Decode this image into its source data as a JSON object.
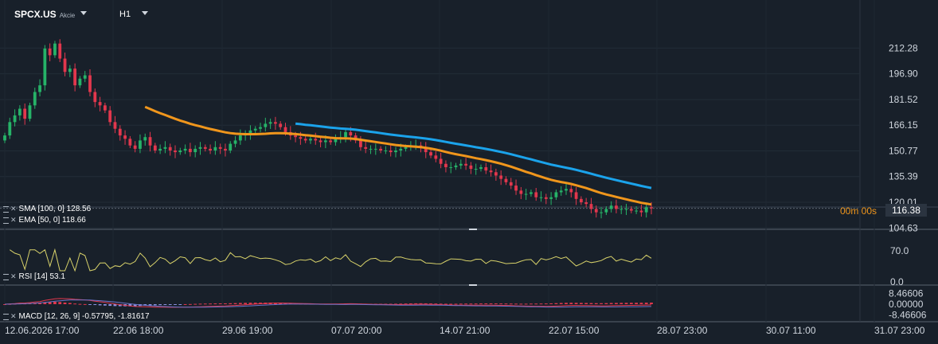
{
  "header": {
    "symbol": "SPCX.US",
    "symbol_type": "Akcie",
    "timeframe": "H1"
  },
  "legends": {
    "sma": "SMA [100, 0] 128.56",
    "ema": "EMA [50, 0] 118.66",
    "rsi": "RSI [14] 53.1",
    "macd": "MACD [12, 26, 9] -0.57795, -1.81617"
  },
  "countdown": "00m 00s",
  "last_price": "116.38",
  "colors": {
    "background": "#18202a",
    "bull": "#26b368",
    "bear": "#e2374d",
    "sma": "#1ba3eb",
    "ema": "#f0961c",
    "rsi": "#d8d26a",
    "macd_line": "#e2374d",
    "signal_line": "#6b74c8",
    "hist_pos": "#e2374d",
    "hist_neg": "#8a90e0"
  },
  "chart_data": {
    "type": "candlestick",
    "price_axis": {
      "ticks": [
        "212.28",
        "196.90",
        "181.52",
        "166.15",
        "150.77",
        "135.39",
        "120.01",
        "104.63"
      ],
      "ylim": [
        100.0,
        222.0
      ]
    },
    "rsi_axis": {
      "ticks": [
        "70.0",
        "0.0"
      ]
    },
    "macd_axis": {
      "ticks": [
        "8.46606",
        "0.00000",
        "-8.46606"
      ]
    },
    "x_ticks": [
      "12.06.2026 17:00",
      "22.06 18:00",
      "29.06 19:00",
      "07.07 20:00",
      "14.07 21:00",
      "22.07 15:00",
      "28.07 23:00",
      "30.07 11:00",
      "31.07 23:00"
    ],
    "closes": [
      160,
      168,
      172,
      176,
      170,
      178,
      186,
      190,
      212,
      208,
      215,
      206,
      198,
      200,
      190,
      194,
      196,
      186,
      180,
      178,
      175,
      168,
      164,
      160,
      158,
      154,
      152,
      157,
      159,
      154,
      151,
      152,
      153,
      151,
      150,
      151,
      152,
      150,
      152,
      153,
      152,
      151,
      153,
      152,
      151,
      155,
      157,
      160,
      161,
      163,
      164,
      165,
      167,
      168,
      167,
      165,
      162,
      160,
      159,
      158,
      157,
      158,
      157,
      156,
      157,
      156,
      158,
      159,
      162,
      160,
      157,
      153,
      152,
      152,
      152,
      151,
      151,
      150,
      151,
      152,
      153,
      154,
      154,
      153,
      150,
      148,
      146,
      143,
      141,
      141,
      142,
      143,
      142,
      140,
      140,
      141,
      139,
      138,
      136,
      134,
      132,
      130,
      127,
      125,
      125,
      126,
      123,
      123,
      122,
      123,
      126,
      127,
      128,
      126,
      122,
      120,
      119,
      116,
      114,
      114,
      116,
      118,
      116,
      116,
      116,
      115,
      115,
      114,
      117,
      116.38
    ],
    "sma_start_index": 58,
    "sma_start_value": 167.3,
    "sma_end_value": 128.56,
    "ema_start_index": 28,
    "ema_start_value": 178.0,
    "ema_end_value": 118.66,
    "rsi_last": 53.1,
    "macd_last": -0.57795,
    "signal_last": -1.81617
  }
}
